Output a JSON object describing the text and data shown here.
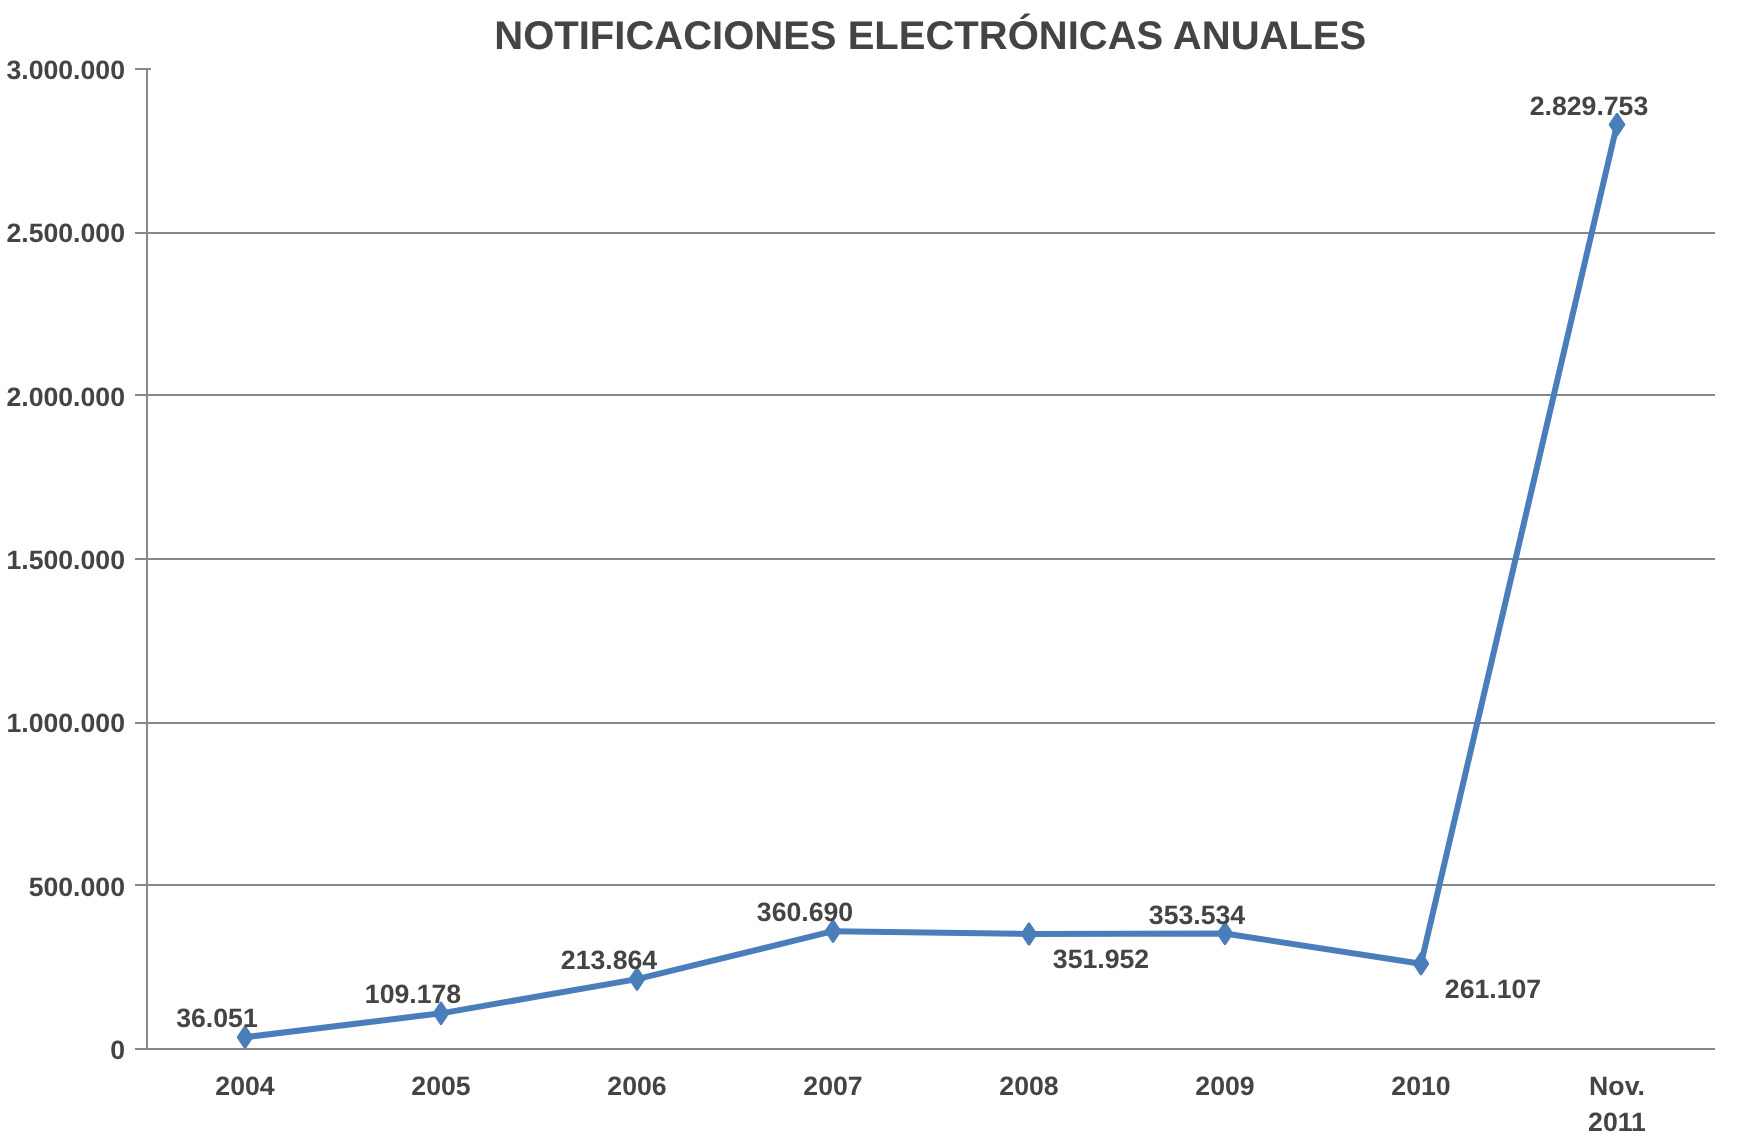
{
  "chart_data": {
    "type": "line",
    "title": "NOTIFICACIONES ELECTRÓNICAS ANUALES",
    "categories": [
      "2004",
      "2005",
      "2006",
      "2007",
      "2008",
      "2009",
      "2010",
      "Nov.\n2011"
    ],
    "series": [
      {
        "color": "#4a7ebb",
        "values": [
          36051,
          109178,
          213864,
          360690,
          351952,
          353534,
          261107,
          2829753
        ],
        "value_labels": [
          "36.051",
          "109.178",
          "213.864",
          "360.690",
          "351.952",
          "353.534",
          "261.107",
          "2.829.753"
        ]
      }
    ],
    "ylim": [
      0,
      3000000
    ],
    "yticks": [
      {
        "value": 0,
        "label": "0"
      },
      {
        "value": 500000,
        "label": "500.000"
      },
      {
        "value": 1000000,
        "label": "1.000.000"
      },
      {
        "value": 1500000,
        "label": "1.500.000"
      },
      {
        "value": 2000000,
        "label": "2.000.000"
      },
      {
        "value": 2500000,
        "label": "2.500.000"
      },
      {
        "value": 3000000,
        "label": "3.000.000"
      }
    ],
    "grid": "y",
    "marker": "diamond",
    "line_style": "solid"
  }
}
